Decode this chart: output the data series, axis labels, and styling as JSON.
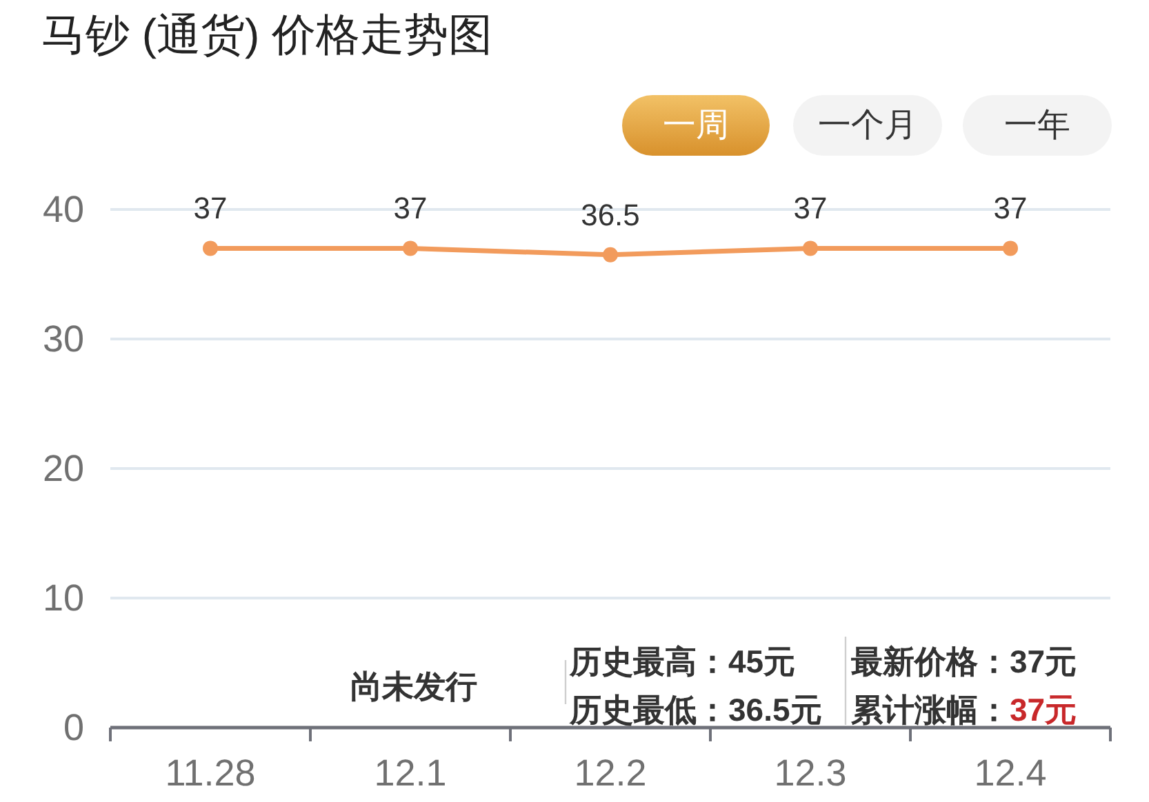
{
  "chart_data": {
    "type": "line",
    "title": "马钞 (通货) 价格走势图",
    "categories": [
      "11.28",
      "12.1",
      "12.2",
      "12.3",
      "12.4"
    ],
    "values": [
      37,
      37,
      36.5,
      37,
      37
    ],
    "color": "#f29b5c",
    "ylim": [
      0,
      40
    ],
    "yticks": [
      0,
      10,
      20,
      30,
      40
    ],
    "grid": "y",
    "marker": "circle",
    "data_labels": true,
    "annotations": [
      "一周",
      "一个月",
      "一年",
      "尚未发行",
      "历史最高：45元",
      "历史最低：36.5元",
      "最新价格：37元",
      "累计涨幅：37元"
    ]
  }
}
